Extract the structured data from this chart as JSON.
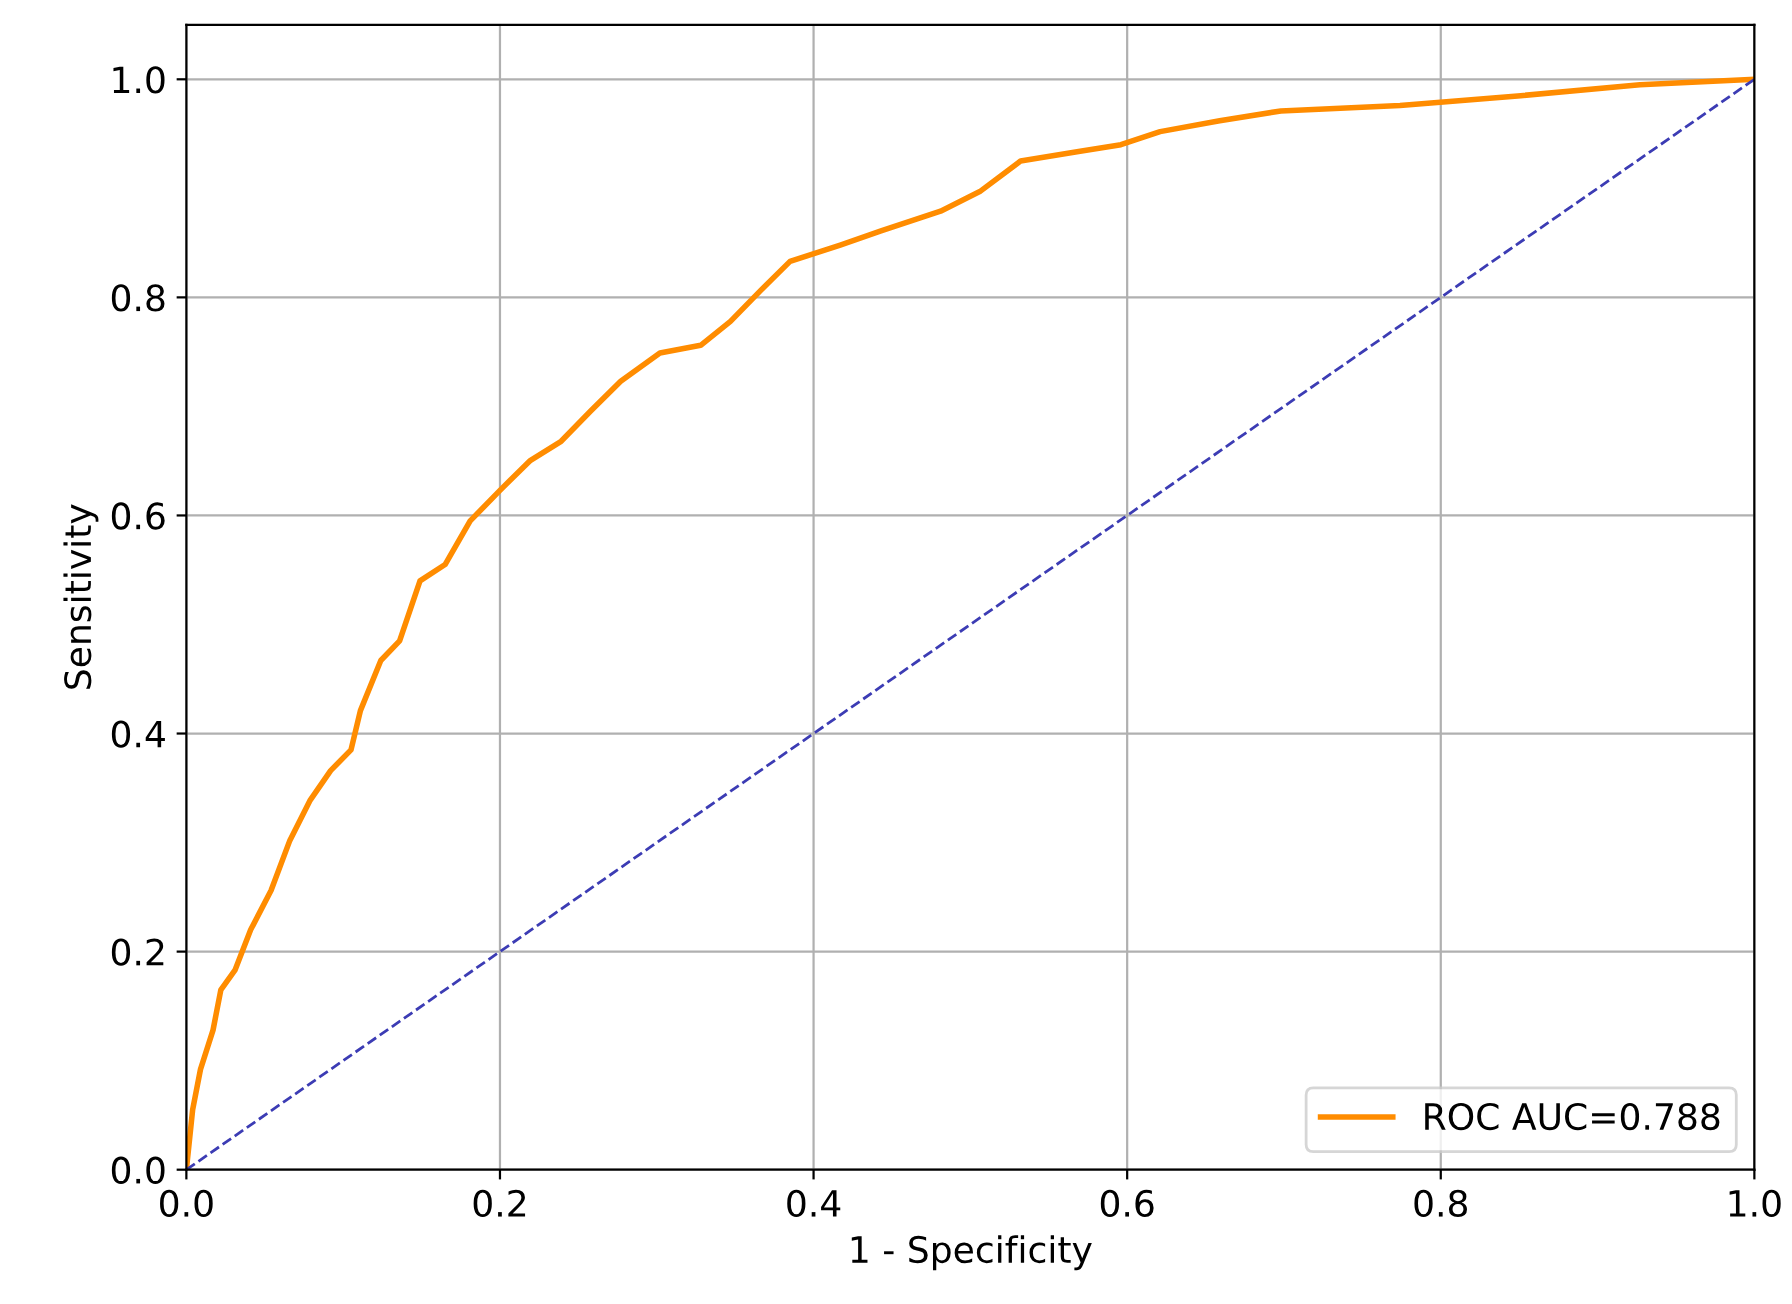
{
  "chart_data": {
    "type": "line",
    "xlabel": "1 - Specificity",
    "ylabel": "Sensitivity",
    "xlim": [
      0.0,
      1.0
    ],
    "ylim": [
      0.0,
      1.05
    ],
    "xticks": [
      {
        "value": 0,
        "label": "0.0"
      },
      0.2,
      0.4,
      0.6,
      0.8,
      {
        "value": 1,
        "label": "1.0"
      }
    ],
    "yticks": [
      {
        "value": 0,
        "label": "0.0"
      },
      0.2,
      0.4,
      0.6,
      0.8,
      {
        "value": 1,
        "label": "1.0"
      }
    ],
    "grid": true,
    "legend": "bottom right",
    "series": [
      {
        "name": "ROC AUC=0.788",
        "color": "#ff8c00",
        "line_style": "solid",
        "x": [
          0,
          0.004,
          0.009,
          0.017,
          0.022,
          0.031,
          0.041,
          0.054,
          0.066,
          0.079,
          0.092,
          0.105,
          0.111,
          0.124,
          0.136,
          0.149,
          0.165,
          0.181,
          0.2,
          0.219,
          0.239,
          0.258,
          0.277,
          0.302,
          0.328,
          0.347,
          0.366,
          0.385,
          0.417,
          0.443,
          0.481,
          0.506,
          0.532,
          0.57,
          0.596,
          0.621,
          0.659,
          0.698,
          0.774,
          0.851,
          0.927,
          1
        ],
        "values": [
          0,
          0.055,
          0.092,
          0.128,
          0.165,
          0.183,
          0.22,
          0.256,
          0.302,
          0.339,
          0.366,
          0.385,
          0.421,
          0.467,
          0.485,
          0.54,
          0.555,
          0.595,
          0.623,
          0.65,
          0.668,
          0.696,
          0.723,
          0.749,
          0.756,
          0.778,
          0.806,
          0.833,
          0.848,
          0.861,
          0.879,
          0.897,
          0.925,
          0.934,
          0.94,
          0.952,
          0.962,
          0.971,
          0.976,
          0.985,
          0.995,
          1
        ]
      },
      {
        "color": "#3c3cb4",
        "line_style": "dashed",
        "x": [
          0,
          1
        ],
        "values": [
          0,
          1
        ]
      }
    ]
  }
}
